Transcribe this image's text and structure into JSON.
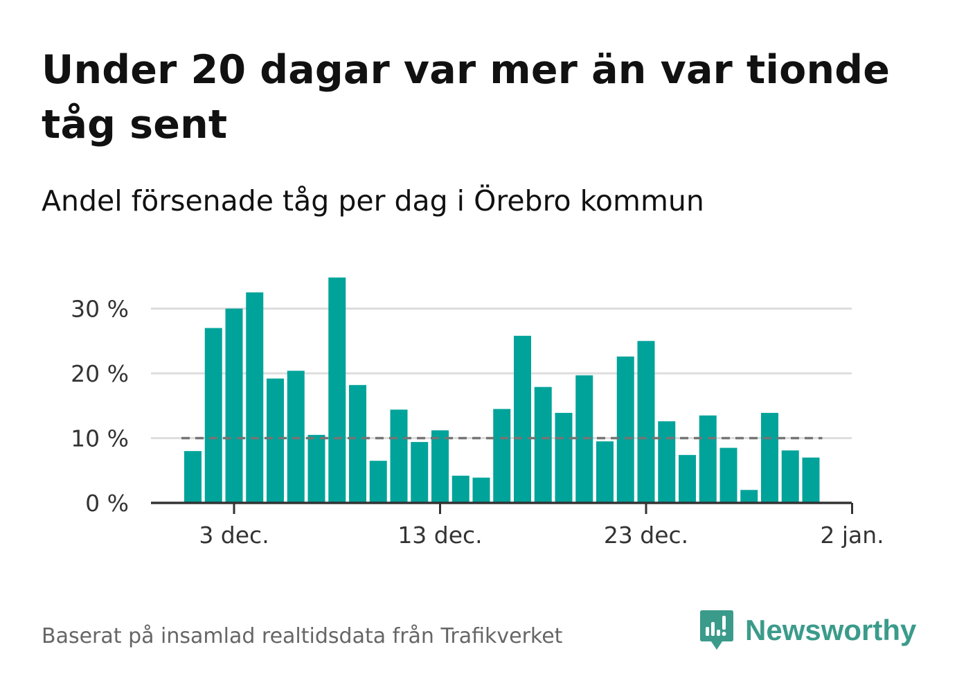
{
  "header": {
    "title": "Under 20 dagar var mer än var tionde tåg sent",
    "subtitle": "Andel försenade tåg per dag i Örebro kommun"
  },
  "footer": {
    "source": "Baserat på insamlad realtidsdata från Trafikverket",
    "brand": "Newsworthy"
  },
  "colors": {
    "bar": "#00a39a",
    "reference_line": "#757575",
    "grid": "#dddddd",
    "axis": "#333333",
    "brand": "#3b9b8b"
  },
  "icons": {
    "brand_logo": "newsworthy-logo-icon"
  },
  "chart_data": {
    "type": "bar",
    "title": "Under 20 dagar var mer än var tionde tåg sent",
    "subtitle": "Andel försenade tåg per dag i Örebro kommun",
    "xlabel": "",
    "ylabel": "",
    "x": [
      "2023-12-01",
      "2023-12-02",
      "2023-12-03",
      "2023-12-04",
      "2023-12-05",
      "2023-12-06",
      "2023-12-07",
      "2023-12-08",
      "2023-12-09",
      "2023-12-10",
      "2023-12-11",
      "2023-12-12",
      "2023-12-13",
      "2023-12-14",
      "2023-12-15",
      "2023-12-16",
      "2023-12-17",
      "2023-12-18",
      "2023-12-19",
      "2023-12-20",
      "2023-12-21",
      "2023-12-22",
      "2023-12-23",
      "2023-12-24",
      "2023-12-25",
      "2023-12-26",
      "2023-12-27",
      "2023-12-28",
      "2023-12-29",
      "2023-12-30",
      "2023-12-31"
    ],
    "values": [
      8.0,
      27.0,
      30.0,
      32.5,
      19.2,
      20.4,
      10.5,
      34.8,
      18.2,
      6.5,
      14.4,
      9.4,
      11.2,
      4.2,
      3.9,
      14.5,
      25.8,
      17.9,
      13.9,
      19.7,
      9.5,
      22.6,
      25.0,
      12.6,
      7.4,
      13.5,
      8.5,
      2.0,
      13.9,
      8.1,
      7.0
    ],
    "series": [
      {
        "values": [
          8.0,
          27.0,
          30.0,
          32.5,
          19.2,
          20.4,
          10.5,
          34.8,
          18.2,
          6.5,
          14.4,
          9.4,
          11.2,
          4.2,
          3.9,
          14.5,
          25.8,
          17.9,
          13.9,
          19.7,
          9.5,
          22.6,
          25.0,
          12.6,
          7.4,
          13.5,
          8.5,
          2.0,
          13.9,
          8.1,
          7.0
        ]
      }
    ],
    "reference_line": 10,
    "ylim": [
      0,
      35
    ],
    "yticks": [
      0,
      10,
      20,
      30
    ],
    "ytick_labels": [
      "0 %",
      "10 %",
      "20 %",
      "30 %"
    ],
    "xticks": [
      "2023-12-03",
      "2023-12-13",
      "2023-12-23",
      "2024-01-02"
    ],
    "xtick_labels": [
      "3 dec.",
      "13 dec.",
      "23 dec.",
      "2 jan."
    ],
    "grid": true,
    "legend": "none"
  }
}
